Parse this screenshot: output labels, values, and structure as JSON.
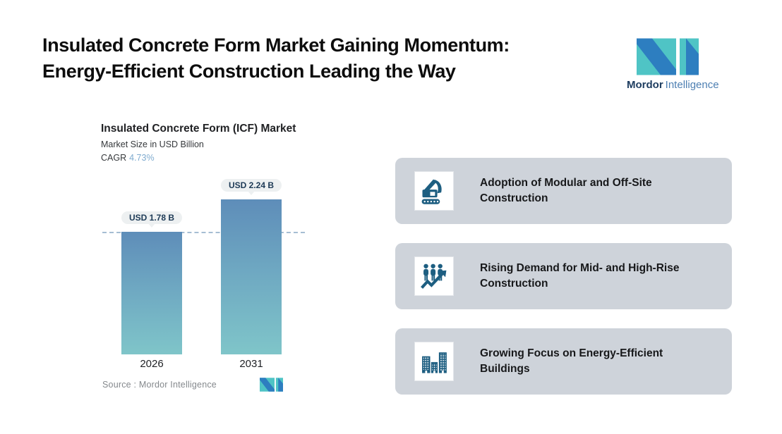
{
  "header": {
    "title_line1": "Insulated Concrete Form Market Gaining Momentum:",
    "title_line2": "Energy-Efficient Construction Leading the Way",
    "brand": {
      "name_bold": "Mordor",
      "name_light": "Intelligence"
    }
  },
  "chart": {
    "title": "Insulated Concrete Form (ICF) Market",
    "subtitle": "Market Size in USD Billion",
    "cagr_label": "CAGR",
    "cagr_value": "4.73%",
    "source_label": "Source :",
    "source_value": "Mordor Intelligence"
  },
  "chart_data": {
    "type": "bar",
    "title": "Insulated Concrete Form (ICF) Market",
    "subtitle": "Market Size in USD Billion",
    "unit": "USD Billion",
    "cagr_percent": 4.73,
    "categories": [
      "2026",
      "2031"
    ],
    "values": [
      1.78,
      2.24
    ],
    "value_labels": [
      "USD 1.78 B",
      "USD 2.24 B"
    ],
    "reference_line": {
      "value": 1.78,
      "style": "dashed"
    },
    "ylim": [
      0,
      2.4
    ],
    "grid": false,
    "legend": false,
    "bar_gradient": [
      "#5e8db9",
      "#7fc5c9"
    ]
  },
  "cards": [
    {
      "icon": "excavator-icon",
      "title": "Adoption of Modular and Off-Site Construction"
    },
    {
      "icon": "people-growth-icon",
      "title": "Rising Demand for Mid- and High-Rise Construction"
    },
    {
      "icon": "buildings-icon",
      "title": "Growing Focus on Energy-Efficient Buildings"
    }
  ],
  "colors": {
    "accent_teal": "#4fc4c5",
    "accent_blue": "#2d7ec0",
    "icon_blue": "#1d5e81",
    "card_bg": "#ced3da",
    "cagr_value": "#7fabcf",
    "dashed_line": "#a6bdd3",
    "pill_bg": "#edf0f1"
  }
}
